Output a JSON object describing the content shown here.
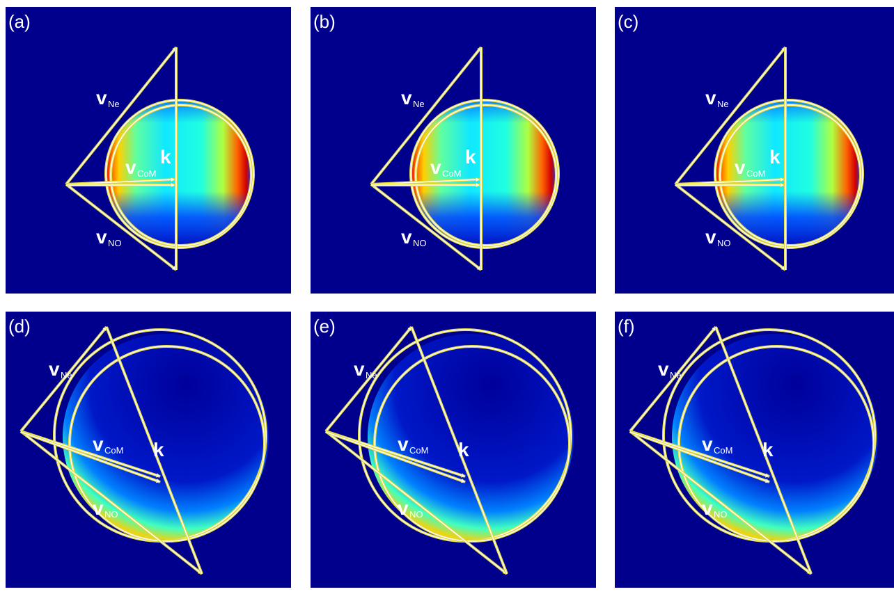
{
  "panels": [
    {
      "label": "(a)",
      "v_ne": {
        "symbol": "v",
        "subscript": "Ne"
      },
      "v_com": {
        "symbol": "v",
        "subscript": "CoM"
      },
      "v_no": {
        "symbol": "v",
        "subscript": "NO"
      },
      "k": "k"
    },
    {
      "label": "(b)",
      "v_ne": {
        "symbol": "v",
        "subscript": "Ne"
      },
      "v_com": {
        "symbol": "v",
        "subscript": "CoM"
      },
      "v_no": {
        "symbol": "v",
        "subscript": "NO"
      },
      "k": "k"
    },
    {
      "label": "(c)",
      "v_ne": {
        "symbol": "v",
        "subscript": "Ne"
      },
      "v_com": {
        "symbol": "v",
        "subscript": "CoM"
      },
      "v_no": {
        "symbol": "v",
        "subscript": "NO"
      },
      "k": "k"
    },
    {
      "label": "(d)",
      "v_ne": {
        "symbol": "v",
        "subscript": "Ne"
      },
      "v_com": {
        "symbol": "v",
        "subscript": "CoM"
      },
      "v_no": {
        "symbol": "v",
        "subscript": "NO"
      },
      "k": "k"
    },
    {
      "label": "(e)",
      "v_ne": {
        "symbol": "v",
        "subscript": "Ne"
      },
      "v_com": {
        "symbol": "v",
        "subscript": "CoM"
      },
      "v_no": {
        "symbol": "v",
        "subscript": "NO"
      },
      "k": "k"
    },
    {
      "label": "(f)",
      "v_ne": {
        "symbol": "v",
        "subscript": "Ne"
      },
      "v_com": {
        "symbol": "v",
        "subscript": "CoM"
      },
      "v_no": {
        "symbol": "v",
        "subscript": "NO"
      },
      "k": "k"
    }
  ]
}
